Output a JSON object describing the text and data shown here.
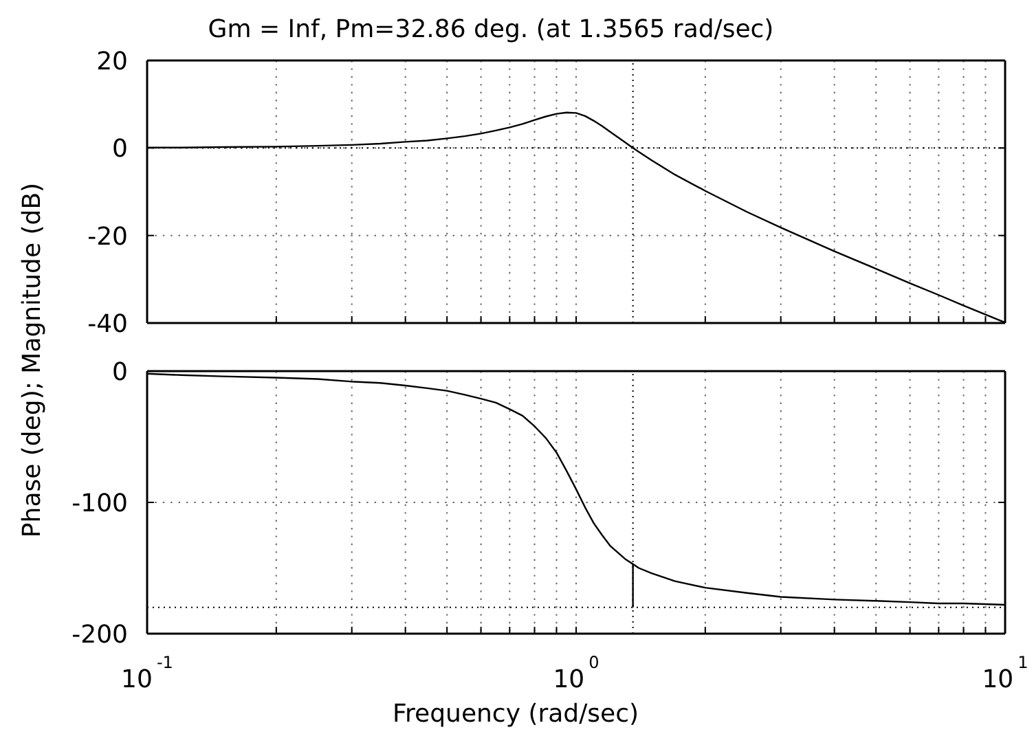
{
  "chart_data": [
    {
      "type": "line",
      "title": "Gm = Inf, Pm=32.86 deg. (at 1.3565 rad/sec)",
      "log": "x",
      "grid": true,
      "tick_labels": "y",
      "xlim": [
        0.1,
        10
      ],
      "xticks": [
        {
          "value": 0.1,
          "label": null
        },
        {
          "value": 0.2,
          "label": null
        },
        {
          "value": 0.3,
          "label": null
        },
        {
          "value": 0.4,
          "label": null
        },
        {
          "value": 0.5,
          "label": null
        },
        {
          "value": 0.6,
          "label": null
        },
        {
          "value": 0.7,
          "label": null
        },
        {
          "value": 0.8,
          "label": null
        },
        {
          "value": 0.9,
          "label": null
        },
        {
          "value": 1,
          "label": null
        },
        {
          "value": 2,
          "label": null
        },
        {
          "value": 3,
          "label": null
        },
        {
          "value": 4,
          "label": null
        },
        {
          "value": 5,
          "label": null
        },
        {
          "value": 6,
          "label": null
        },
        {
          "value": 7,
          "label": null
        },
        {
          "value": 8,
          "label": null
        },
        {
          "value": 9,
          "label": null
        },
        {
          "value": 10,
          "label": null
        }
      ],
      "ylim": [
        -40,
        20
      ],
      "yticks": [
        -40,
        -20,
        0,
        20
      ],
      "ref_lines": [
        {
          "axis": "y",
          "value": 0,
          "color": "#000000",
          "line_style": "dotted"
        },
        {
          "axis": "x",
          "value": 1.3565,
          "color": "#000000",
          "line_style": "dotted"
        }
      ],
      "series": [
        {
          "color": "#000000",
          "x": [
            0.1,
            0.12,
            0.15,
            0.2,
            0.25,
            0.3,
            0.35,
            0.4,
            0.45,
            0.5,
            0.55,
            0.6,
            0.65,
            0.7,
            0.75,
            0.8,
            0.85,
            0.9,
            0.95,
            1,
            1.05,
            1.1,
            1.15,
            1.2,
            1.3,
            1.3565,
            1.4,
            1.5,
            1.7,
            2,
            2.5,
            3,
            4,
            5,
            6,
            7,
            8,
            10
          ],
          "values": [
            0.1,
            0.1,
            0.2,
            0.3,
            0.5,
            0.7,
            1.0,
            1.4,
            1.7,
            2.2,
            2.7,
            3.3,
            4.0,
            4.7,
            5.5,
            6.4,
            7.2,
            7.8,
            8.1,
            8.0,
            7.3,
            6.2,
            5.0,
            3.7,
            1.3,
            0,
            -0.9,
            -2.8,
            -6.1,
            -9.8,
            -14.6,
            -18.2,
            -23.6,
            -27.6,
            -30.9,
            -33.6,
            -36.0,
            -39.9
          ]
        }
      ]
    },
    {
      "type": "line",
      "xlabel": "Frequency (rad/sec)",
      "ylabel": "Phase (deg); Magnitude (dB)",
      "log": "x",
      "grid": true,
      "xlim": [
        0.1,
        10
      ],
      "xticks": [
        {
          "value": 0.1,
          "label": "10$^{-1}$"
        },
        {
          "value": 0.2,
          "label": null
        },
        {
          "value": 0.3,
          "label": null
        },
        {
          "value": 0.4,
          "label": null
        },
        {
          "value": 0.5,
          "label": null
        },
        {
          "value": 0.6,
          "label": null
        },
        {
          "value": 0.7,
          "label": null
        },
        {
          "value": 0.8,
          "label": null
        },
        {
          "value": 0.9,
          "label": null
        },
        {
          "value": 1,
          "label": "10$^{0}$"
        },
        {
          "value": 2,
          "label": null
        },
        {
          "value": 3,
          "label": null
        },
        {
          "value": 4,
          "label": null
        },
        {
          "value": 5,
          "label": null
        },
        {
          "value": 6,
          "label": null
        },
        {
          "value": 7,
          "label": null
        },
        {
          "value": 8,
          "label": null
        },
        {
          "value": 9,
          "label": null
        },
        {
          "value": 10,
          "label": "10$^{1}$"
        }
      ],
      "ylim": [
        -200,
        0
      ],
      "yticks": [
        -200,
        -100,
        0
      ],
      "ref_lines": [
        {
          "axis": "y",
          "value": -180,
          "color": "#000000",
          "line_style": "dotted"
        },
        {
          "axis": "x",
          "value": 1.3565,
          "color": "#000000",
          "line_style": "dotted"
        }
      ],
      "series": [
        {
          "color": "#000000",
          "x": [
            0.1,
            0.12,
            0.15,
            0.2,
            0.25,
            0.3,
            0.35,
            0.4,
            0.45,
            0.5,
            0.55,
            0.6,
            0.65,
            0.7,
            0.75,
            0.8,
            0.85,
            0.9,
            0.95,
            1,
            1.05,
            1.1,
            1.15,
            1.2,
            1.3,
            1.3565,
            1.4,
            1.5,
            1.7,
            2,
            2.5,
            3,
            4,
            5,
            6,
            7,
            8,
            10
          ],
          "values": [
            -2,
            -3,
            -4,
            -5,
            -6,
            -8,
            -9,
            -11,
            -13,
            -15,
            -18,
            -21,
            -24,
            -29,
            -34,
            -42,
            -51,
            -62,
            -76,
            -90,
            -104,
            -116,
            -125,
            -133,
            -143,
            -147,
            -150,
            -154,
            -160,
            -165,
            -169,
            -172,
            -174,
            -175,
            -176,
            -177,
            -177,
            -178
          ]
        },
        {
          "color": "#000000",
          "x": [
            1.3565,
            1.3565
          ],
          "values": [
            -180,
            -147
          ]
        }
      ]
    }
  ]
}
